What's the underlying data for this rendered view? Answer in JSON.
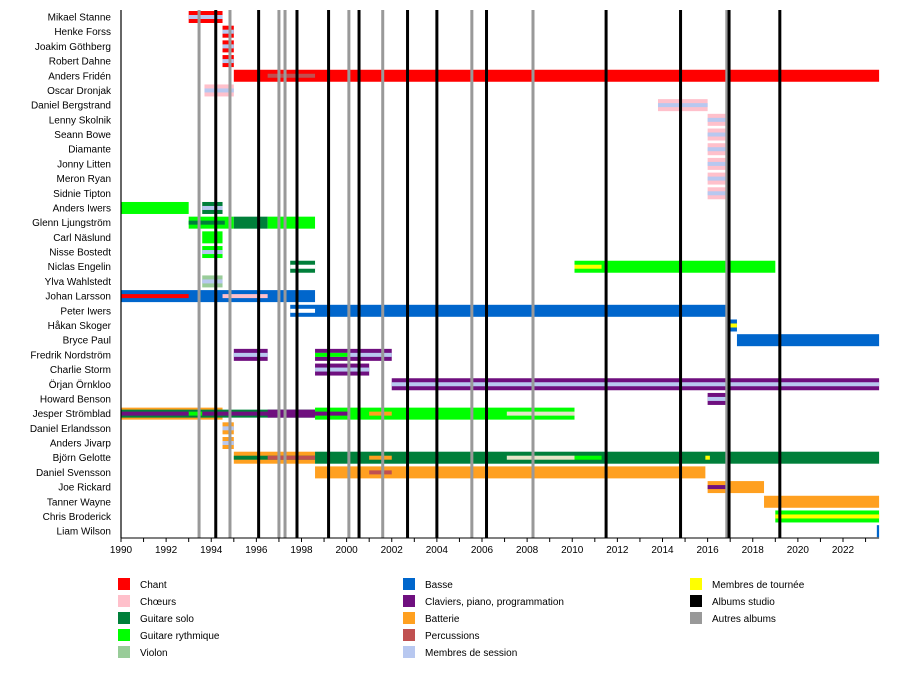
{
  "chart_data": {
    "type": "timeline",
    "xlim": [
      1990,
      2023.6
    ],
    "x_ticks": [
      "1990",
      "1992",
      "1994",
      "1996",
      "1998",
      "2000",
      "2002",
      "2004",
      "2006",
      "2008",
      "2010",
      "2012",
      "2014",
      "2016",
      "2018",
      "2020",
      "2022"
    ],
    "roles": {
      "chant": {
        "label": "Chant",
        "color": "#ff0000"
      },
      "choeurs": {
        "label": "Chœurs",
        "color": "#ffc0cb"
      },
      "solo": {
        "label": "Guitare solo",
        "color": "#007f3a"
      },
      "rythmique": {
        "label": "Guitare rythmique",
        "color": "#00ff00"
      },
      "violon": {
        "label": "Violon",
        "color": "#99cc99"
      },
      "basse": {
        "label": "Basse",
        "color": "#0066cc"
      },
      "claviers": {
        "label": "Claviers, piano, programmation",
        "color": "#6f0f7f"
      },
      "batterie": {
        "label": "Batterie",
        "color": "#ffa020"
      },
      "percussions": {
        "label": "Percussions",
        "color": "#c05050"
      },
      "session": {
        "label": "Membres de session",
        "color": "#b8c8f0"
      },
      "tournee": {
        "label": "Membres de tournée",
        "color": "#ffff00"
      },
      "studio": {
        "label": "Albums studio",
        "color": "#000000"
      },
      "autres": {
        "label": "Autres albums",
        "color": "#999999"
      }
    },
    "legend_order": [
      [
        "chant",
        "choeurs",
        "solo",
        "rythmique",
        "violon"
      ],
      [
        "basse",
        "claviers",
        "batterie",
        "percussions",
        "session"
      ],
      [
        "tournee",
        "studio",
        "autres"
      ]
    ],
    "albums_studio": [
      1994.2,
      1996.1,
      1997.8,
      1999.2,
      2000.55,
      2002.7,
      2004.0,
      2006.2,
      2011.5,
      2014.8,
      2016.95,
      2019.2
    ],
    "autres_albums": [
      1993.46,
      1994.83,
      1997.0,
      1997.27,
      2000.1,
      2001.6,
      2005.55,
      2008.26,
      2016.85
    ],
    "members": [
      {
        "name": "Mikael Stanne",
        "segments": [
          [
            "chant",
            1993.0,
            1994.5,
            "full"
          ],
          [
            "session",
            1993.0,
            1994.5,
            "mid"
          ]
        ]
      },
      {
        "name": "Henke Forss",
        "segments": [
          [
            "chant",
            1994.5,
            1995.0,
            "full"
          ],
          [
            "session",
            1994.5,
            1995.0,
            "mid"
          ]
        ]
      },
      {
        "name": "Joakim Göthberg",
        "segments": [
          [
            "chant",
            1994.5,
            1995.0,
            "full"
          ],
          [
            "session",
            1994.5,
            1995.0,
            "mid"
          ]
        ]
      },
      {
        "name": "Robert Dahne",
        "segments": [
          [
            "chant",
            1994.5,
            1995.0,
            "full"
          ],
          [
            "session",
            1994.5,
            1995.0,
            "mid"
          ]
        ]
      },
      {
        "name": "Anders Fridén",
        "segments": [
          [
            "chant",
            1995.0,
            2023.6,
            "full"
          ],
          [
            "percussions",
            1996.5,
            1998.6,
            "mid"
          ]
        ]
      },
      {
        "name": "Oscar Dronjak",
        "segments": [
          [
            "choeurs",
            1993.7,
            1995.0,
            "full"
          ],
          [
            "session",
            1993.7,
            1995.0,
            "mid"
          ]
        ]
      },
      {
        "name": "Daniel Bergstrand",
        "segments": [
          [
            "choeurs",
            2013.8,
            2016.0,
            "full"
          ],
          [
            "session",
            2013.8,
            2016.0,
            "mid"
          ]
        ]
      },
      {
        "name": "Lenny Skolnik",
        "segments": [
          [
            "choeurs",
            2016.0,
            2017.0,
            "full"
          ],
          [
            "session",
            2016.0,
            2017.0,
            "mid"
          ]
        ]
      },
      {
        "name": "Seann Bowe",
        "segments": [
          [
            "choeurs",
            2016.0,
            2017.0,
            "full"
          ],
          [
            "session",
            2016.0,
            2017.0,
            "mid"
          ]
        ]
      },
      {
        "name": "Diamante",
        "segments": [
          [
            "choeurs",
            2016.0,
            2017.0,
            "full"
          ],
          [
            "session",
            2016.0,
            2017.0,
            "mid"
          ]
        ]
      },
      {
        "name": "Jonny Litten",
        "segments": [
          [
            "choeurs",
            2016.0,
            2017.0,
            "full"
          ],
          [
            "session",
            2016.0,
            2017.0,
            "mid"
          ]
        ]
      },
      {
        "name": "Meron Ryan",
        "segments": [
          [
            "choeurs",
            2016.0,
            2017.0,
            "full"
          ],
          [
            "session",
            2016.0,
            2017.0,
            "mid"
          ]
        ]
      },
      {
        "name": "Sidnie Tipton",
        "segments": [
          [
            "choeurs",
            2016.0,
            2017.0,
            "full"
          ],
          [
            "session",
            2016.0,
            2017.0,
            "mid"
          ]
        ]
      },
      {
        "name": "Anders Iwers",
        "segments": [
          [
            "rythmique",
            1990.0,
            1993.0,
            "full"
          ],
          [
            "solo",
            1993.6,
            1994.5,
            "full"
          ],
          [
            "session",
            1993.6,
            1994.5,
            "mid"
          ]
        ]
      },
      {
        "name": "Glenn Ljungström",
        "segments": [
          [
            "rythmique",
            1993.0,
            1995.0,
            "full"
          ],
          [
            "solo",
            1995.0,
            1996.5,
            "full"
          ],
          [
            "rythmique",
            1996.5,
            1998.6,
            "full"
          ],
          [
            "solo",
            1993.0,
            1994.6,
            "mid"
          ]
        ]
      },
      {
        "name": "Carl Näslund",
        "segments": [
          [
            "rythmique",
            1993.6,
            1994.5,
            "full"
          ]
        ]
      },
      {
        "name": "Nisse Bostedt",
        "segments": [
          [
            "rythmique",
            1993.6,
            1994.5,
            "full"
          ],
          [
            "session",
            1993.6,
            1994.5,
            "mid"
          ]
        ]
      },
      {
        "name": "Niclas Engelin",
        "segments": [
          [
            "solo",
            1997.5,
            1998.6,
            "full"
          ],
          [
            "blank",
            1997.5,
            1998.6,
            "mid"
          ],
          [
            "rythmique",
            2010.1,
            2019.0,
            "full"
          ],
          [
            "tournee",
            2010.1,
            2011.3,
            "mid"
          ]
        ]
      },
      {
        "name": "Ylva Wahlstedt",
        "segments": [
          [
            "violon",
            1993.6,
            1994.5,
            "full"
          ],
          [
            "session",
            1993.6,
            1994.5,
            "mid"
          ]
        ]
      },
      {
        "name": "Johan Larsson",
        "segments": [
          [
            "basse",
            1990.0,
            1998.6,
            "full"
          ],
          [
            "chant",
            1990.0,
            1993.0,
            "mid"
          ],
          [
            "choeurs",
            1994.5,
            1996.5,
            "mid"
          ]
        ]
      },
      {
        "name": "Peter Iwers",
        "segments": [
          [
            "basse",
            1997.5,
            2017.0,
            "full"
          ],
          [
            "blank",
            1997.5,
            1998.6,
            "mid"
          ]
        ]
      },
      {
        "name": "Håkan Skoger",
        "segments": [
          [
            "basse",
            2017.0,
            2017.3,
            "full"
          ],
          [
            "tournee",
            2017.0,
            2017.3,
            "mid"
          ]
        ]
      },
      {
        "name": "Bryce Paul",
        "segments": [
          [
            "basse",
            2017.3,
            2023.6,
            "full"
          ]
        ]
      },
      {
        "name": "Fredrik Nordström",
        "segments": [
          [
            "claviers",
            1995.0,
            1996.5,
            "full"
          ],
          [
            "session",
            1995.0,
            1996.5,
            "mid"
          ],
          [
            "claviers",
            1998.6,
            2002.0,
            "full"
          ],
          [
            "session",
            1998.6,
            2002.0,
            "mid"
          ],
          [
            "rythmique",
            1998.6,
            2000.1,
            "mid"
          ]
        ]
      },
      {
        "name": "Charlie Storm",
        "segments": [
          [
            "claviers",
            1998.6,
            2001.0,
            "full"
          ],
          [
            "session",
            1998.6,
            2001.0,
            "mid"
          ]
        ]
      },
      {
        "name": "Örjan Örnkloo",
        "segments": [
          [
            "claviers",
            2002.0,
            2023.6,
            "full"
          ],
          [
            "session",
            2002.0,
            2023.6,
            "mid"
          ]
        ]
      },
      {
        "name": "Howard Benson",
        "segments": [
          [
            "claviers",
            2016.0,
            2017.0,
            "full"
          ],
          [
            "session",
            2016.0,
            2017.0,
            "mid"
          ]
        ]
      },
      {
        "name": "Jesper Strömblad",
        "segments": [
          [
            "batterie",
            1990.0,
            1994.5,
            "full"
          ],
          [
            "solo",
            1990.0,
            1998.6,
            "inset"
          ],
          [
            "claviers",
            1996.5,
            1998.6,
            "inset"
          ],
          [
            "rythmique",
            1998.6,
            2010.1,
            "full"
          ],
          [
            "claviers",
            1990.0,
            2000.1,
            "mid"
          ],
          [
            "rythmique",
            1993.0,
            1993.6,
            "mid"
          ],
          [
            "batterie",
            2001.0,
            2002.0,
            "mid"
          ],
          [
            "#e6e6c8",
            2007.1,
            2010.1,
            "mid"
          ]
        ]
      },
      {
        "name": "Daniel Erlandsson",
        "segments": [
          [
            "batterie",
            1994.5,
            1995.0,
            "full"
          ],
          [
            "session",
            1994.5,
            1995.0,
            "mid"
          ]
        ]
      },
      {
        "name": "Anders Jivarp",
        "segments": [
          [
            "batterie",
            1994.5,
            1995.0,
            "full"
          ],
          [
            "session",
            1994.5,
            1995.0,
            "mid"
          ]
        ]
      },
      {
        "name": "Björn Gelotte",
        "segments": [
          [
            "batterie",
            1995.0,
            1998.6,
            "full"
          ],
          [
            "solo",
            1995.0,
            1998.6,
            "mid"
          ],
          [
            "percussions",
            1996.5,
            1998.6,
            "mid"
          ],
          [
            "solo",
            1998.6,
            2023.6,
            "full"
          ],
          [
            "batterie",
            2001.0,
            2002.0,
            "mid"
          ],
          [
            "#e6e6c8",
            2007.1,
            2010.1,
            "mid"
          ],
          [
            "rythmique",
            2010.1,
            2011.3,
            "mid"
          ],
          [
            "tournee",
            2015.9,
            2016.1,
            "mid"
          ]
        ]
      },
      {
        "name": "Daniel Svensson",
        "segments": [
          [
            "batterie",
            1998.6,
            2015.9,
            "full"
          ],
          [
            "percussions",
            2001.0,
            2002.0,
            "mid"
          ]
        ]
      },
      {
        "name": "Joe Rickard",
        "segments": [
          [
            "batterie",
            2016.0,
            2018.5,
            "full"
          ],
          [
            "claviers",
            2016.0,
            2017.0,
            "mid"
          ]
        ]
      },
      {
        "name": "Tanner Wayne",
        "segments": [
          [
            "batterie",
            2018.5,
            2023.6,
            "full"
          ]
        ]
      },
      {
        "name": "Chris Broderick",
        "segments": [
          [
            "rythmique",
            2019.0,
            2023.6,
            "full"
          ],
          [
            "tournee",
            2019.0,
            2023.6,
            "mid"
          ]
        ]
      },
      {
        "name": "Liam Wilson",
        "segments": [
          [
            "basse",
            2023.5,
            2023.6,
            "full"
          ]
        ]
      }
    ]
  }
}
